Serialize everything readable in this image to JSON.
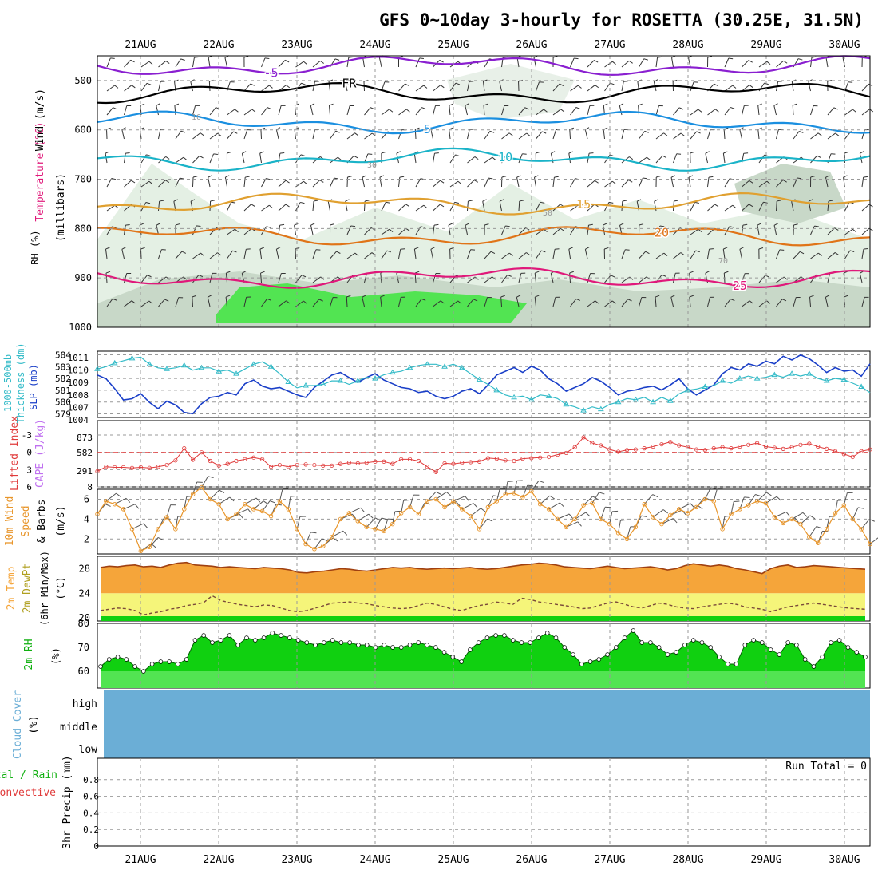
{
  "title": "GFS 0~10day 3-hourly for ROSETTA (30.25E, 31.5N)",
  "dates": [
    "21AUG",
    "22AUG",
    "23AUG",
    "24AUG",
    "25AUG",
    "26AUG",
    "27AUG",
    "28AUG",
    "29AUG",
    "30AUG"
  ],
  "colors": {
    "purple": "#8a1fd0",
    "black": "#000000",
    "blue": "#1a8fe0",
    "cyan": "#1ab3c8",
    "gold": "#e0a030",
    "orange": "#e07418",
    "magenta": "#e0187a",
    "slp": "#1a3fc8",
    "thick": "#33bbc8",
    "cape": "#c070f0",
    "li": "#e03a3a",
    "wind": "#e8952a",
    "temp": "#f5a53a",
    "dew": "#f5f57a",
    "rh": "#10d010",
    "rhlight": "#52e452",
    "cloud": "#6baed6",
    "rhshade": "#d0e6d0"
  },
  "chart_data": [
    {
      "type": "line",
      "title": "Temperature (°C) / Wind (m/s) / RH (%)",
      "ylabel": "(millibars)",
      "left_labels": [
        "Wind (m/s)",
        "Temperature (°C)",
        "RH (%)"
      ],
      "y_ticks": [
        500,
        600,
        700,
        800,
        900,
        1000
      ],
      "ylim": [
        450,
        1000
      ],
      "isotherms": [
        {
          "label": "-5",
          "approx_pressure_mb": 470,
          "color_key": "purple"
        },
        {
          "label": "FR",
          "approx_pressure_mb": 525,
          "color_key": "black"
        },
        {
          "label": "5",
          "approx_pressure_mb": 585,
          "color_key": "blue"
        },
        {
          "label": "10",
          "approx_pressure_mb": 660,
          "color_key": "cyan"
        },
        {
          "label": "15",
          "approx_pressure_mb": 750,
          "color_key": "gold"
        },
        {
          "label": "20",
          "approx_pressure_mb": 815,
          "color_key": "orange"
        },
        {
          "label": "25",
          "approx_pressure_mb": 900,
          "color_key": "magenta"
        }
      ],
      "rh_contour_labels": [
        "10",
        "30",
        "50",
        "70"
      ]
    },
    {
      "type": "line",
      "title": "1000-500mb Thickness (dm) / SLP (mb)",
      "left_label_a": "1000-500mb",
      "left_label_b": "Thickness (dm)",
      "right_label": "SLP (mb)",
      "thickness_ticks": [
        584,
        583,
        582,
        581,
        580,
        579
      ],
      "slp_ticks": [
        1011,
        1010,
        1009,
        1008,
        1007,
        1004
      ],
      "series": [
        {
          "name": "SLP (mb)",
          "color_key": "slp",
          "values": [
            1009.6,
            1009.3,
            1008.5,
            1007.6,
            1007.7,
            1008.1,
            1007.4,
            1006.9,
            1007.5,
            1007.2,
            1006.6,
            1006.5,
            1007.3,
            1007.8,
            1007.9,
            1008.2,
            1008.0,
            1008.9,
            1009.2,
            1008.7,
            1008.5,
            1008.6,
            1008.3,
            1008.0,
            1007.8,
            1008.6,
            1009.1,
            1009.6,
            1009.8,
            1009.4,
            1009.0,
            1009.4,
            1009.7,
            1009.2,
            1008.9,
            1008.6,
            1008.5,
            1008.2,
            1008.3,
            1007.9,
            1007.7,
            1007.9,
            1008.3,
            1008.5,
            1008.1,
            1008.8,
            1009.6,
            1009.9,
            1010.2,
            1009.8,
            1010.3,
            1010.0,
            1009.3,
            1008.9,
            1008.3,
            1008.6,
            1008.9,
            1009.4,
            1009.1,
            1008.6,
            1008.0,
            1008.3,
            1008.4,
            1008.6,
            1008.7,
            1008.4,
            1008.8,
            1009.3,
            1008.5,
            1008.0,
            1008.4,
            1008.8,
            1009.7,
            1010.2,
            1010.0,
            1010.5,
            1010.3,
            1010.7,
            1010.5,
            1011.1,
            1010.8,
            1011.2,
            1010.9,
            1010.4,
            1009.8,
            1010.2,
            1009.9,
            1010.0,
            1009.5,
            1010.5
          ]
        },
        {
          "name": "1000-500mb Thickness (dm)",
          "color_key": "thick",
          "values": [
            582.8,
            583.0,
            583.3,
            583.5,
            583.7,
            583.8,
            583.2,
            582.9,
            582.8,
            582.9,
            583.1,
            582.7,
            582.9,
            582.9,
            582.6,
            582.7,
            582.4,
            582.8,
            583.2,
            583.4,
            583.0,
            582.4,
            581.7,
            581.2,
            581.4,
            581.4,
            581.5,
            581.8,
            581.8,
            581.5,
            581.8,
            582.1,
            582.0,
            582.3,
            582.5,
            582.6,
            582.9,
            583.1,
            583.2,
            583.2,
            583.0,
            583.2,
            582.9,
            582.4,
            581.9,
            581.5,
            581.0,
            580.6,
            580.4,
            580.5,
            580.2,
            580.6,
            580.5,
            580.3,
            579.8,
            579.6,
            579.3,
            579.6,
            579.4,
            579.8,
            580.0,
            580.3,
            580.2,
            580.4,
            580.0,
            580.4,
            580.1,
            580.7,
            581.0,
            581.1,
            581.3,
            581.4,
            581.8,
            581.6,
            582.0,
            582.2,
            582.0,
            582.1,
            582.3,
            582.1,
            582.4,
            582.2,
            582.4,
            582.0,
            581.8,
            582.0,
            581.9,
            581.6,
            581.3,
            580.8
          ]
        }
      ]
    },
    {
      "type": "bar",
      "title": "Lifted Index / CAPE (J/kg)",
      "left_label": "Lifted Index",
      "right_label": "CAPE (J/kg)",
      "li_ticks": [
        "-3",
        "0",
        "3",
        "6"
      ],
      "cape_ticks": [
        "873",
        "582",
        "291",
        "8"
      ],
      "series": [
        {
          "name": "CAPE (J/kg)",
          "color_key": "cape",
          "values": [
            0,
            0,
            0,
            0,
            0,
            0,
            0,
            0,
            0,
            0,
            0,
            0,
            0,
            0,
            0,
            0,
            0,
            0,
            0,
            0,
            0,
            0,
            0,
            0,
            0,
            0,
            0,
            0,
            0,
            0,
            0,
            0,
            0,
            0,
            0,
            0,
            0,
            0,
            0,
            0,
            0,
            0,
            0,
            0,
            0,
            0,
            0,
            0,
            0,
            0,
            0,
            0,
            0,
            0,
            0,
            0,
            0,
            0,
            0,
            0,
            0,
            0,
            0,
            0,
            0,
            0,
            0,
            0,
            0,
            0,
            0,
            0,
            0,
            0,
            0,
            0,
            0,
            0,
            0,
            0,
            0,
            0,
            0,
            0,
            0,
            0,
            0,
            0,
            0,
            0
          ]
        },
        {
          "name": "Lifted Index",
          "color_key": "li",
          "values": [
            3.3,
            2.5,
            2.6,
            2.6,
            2.7,
            2.6,
            2.7,
            2.5,
            2.2,
            1.4,
            -0.7,
            1.3,
            0.0,
            1.5,
            2.3,
            2.0,
            1.5,
            1.2,
            0.9,
            1.2,
            2.5,
            2.2,
            2.5,
            2.2,
            2.1,
            2.2,
            2.3,
            2.3,
            2.0,
            1.8,
            1.9,
            1.8,
            1.6,
            1.6,
            2.0,
            1.2,
            1.2,
            1.5,
            2.5,
            3.4,
            1.9,
            2.0,
            1.8,
            1.7,
            1.6,
            1.0,
            1.1,
            1.4,
            1.5,
            1.1,
            1.0,
            0.9,
            0.8,
            0.4,
            0.1,
            -0.9,
            -2.6,
            -1.6,
            -1.2,
            -0.5,
            -0.1,
            -0.4,
            -0.5,
            -0.7,
            -1.0,
            -1.4,
            -1.8,
            -1.2,
            -0.9,
            -0.5,
            -0.4,
            -0.7,
            -0.9,
            -0.7,
            -1.0,
            -1.3,
            -1.6,
            -1.0,
            -0.8,
            -0.6,
            -0.9,
            -1.3,
            -1.5,
            -1.0,
            -0.6,
            -0.2,
            0.3,
            0.8,
            -0.2,
            -0.5
          ]
        }
      ]
    },
    {
      "type": "line",
      "title": "10m Wind Speed & Barbs",
      "left_label_a": "10m Wind",
      "left_label_b": "Speed",
      "left_label_c": "& Barbs",
      "left_label_d": "(m/s)",
      "y_ticks": [
        2,
        4,
        6
      ],
      "ylim": [
        0.5,
        7.0
      ],
      "series": [
        {
          "name": "10m Wind Speed (m/s)",
          "color_key": "wind",
          "values": [
            4.5,
            5.8,
            5.5,
            5.0,
            3.0,
            0.8,
            1.2,
            3.0,
            4.2,
            3.0,
            5.0,
            6.5,
            7.2,
            6.0,
            5.5,
            4.0,
            4.5,
            5.5,
            5.0,
            4.8,
            4.3,
            5.8,
            5.0,
            3.0,
            1.5,
            1.0,
            1.3,
            2.2,
            4.0,
            4.6,
            3.8,
            3.2,
            3.0,
            2.8,
            3.5,
            4.6,
            5.2,
            4.5,
            5.8,
            6.0,
            5.2,
            5.8,
            5.0,
            4.3,
            3.0,
            5.2,
            5.8,
            6.5,
            6.6,
            6.2,
            6.8,
            5.5,
            5.0,
            4.0,
            3.2,
            4.0,
            5.4,
            5.6,
            4.0,
            3.5,
            2.6,
            2.0,
            3.2,
            5.5,
            4.2,
            3.5,
            4.4,
            5.0,
            4.6,
            5.2,
            6.0,
            5.8,
            3.0,
            4.5,
            5.0,
            5.4,
            5.8,
            5.6,
            4.2,
            3.6,
            4.0,
            3.5,
            2.2,
            1.6,
            3.0,
            4.6,
            5.4,
            4.0,
            3.0,
            1.5
          ]
        }
      ]
    },
    {
      "type": "area",
      "title": "2m Temp / 2m DewPt (6hr Min/Max) (°C)",
      "left_label_a": "2m Temp",
      "left_label_b": "2m DewPt",
      "left_label_c": "(6hr Min/Max)",
      "left_label_d": "(°C)",
      "y_ticks": [
        20,
        24,
        28
      ],
      "ylim": [
        19.5,
        30.0
      ],
      "series": [
        {
          "name": "2m Temp (°C)",
          "color_key": "temp",
          "values": [
            28.2,
            28.4,
            28.3,
            28.5,
            28.6,
            28.3,
            28.4,
            28.2,
            28.6,
            28.9,
            29.0,
            28.6,
            28.5,
            28.4,
            28.2,
            28.3,
            28.2,
            28.1,
            28.0,
            28.2,
            28.1,
            28.0,
            27.8,
            27.4,
            27.3,
            27.5,
            27.6,
            27.8,
            28.0,
            27.9,
            27.7,
            27.6,
            27.8,
            28.0,
            28.2,
            28.1,
            28.2,
            28.0,
            27.9,
            28.0,
            28.1,
            28.0,
            28.1,
            28.2,
            28.0,
            27.9,
            28.0,
            28.2,
            28.4,
            28.6,
            28.7,
            28.9,
            28.8,
            28.6,
            28.3,
            28.2,
            28.1,
            28.0,
            28.2,
            28.4,
            28.2,
            28.0,
            28.1,
            28.2,
            28.3,
            28.1,
            27.8,
            28.0,
            28.5,
            28.8,
            28.6,
            28.4,
            28.6,
            28.4,
            28.0,
            27.8,
            27.5,
            27.2,
            28.0,
            28.4,
            28.6,
            28.2,
            28.3,
            28.5,
            28.4,
            28.3,
            28.2,
            28.1,
            28.0,
            27.9
          ]
        },
        {
          "name": "2m DewPt (°C)",
          "color_key": "dew",
          "values": [
            21.2,
            21.4,
            21.6,
            21.5,
            21.2,
            20.5,
            20.8,
            21.0,
            21.4,
            21.6,
            22.0,
            22.2,
            22.5,
            23.6,
            22.8,
            22.5,
            22.2,
            22.0,
            21.8,
            22.1,
            22.0,
            21.6,
            21.2,
            21.0,
            21.2,
            21.6,
            22.0,
            22.4,
            22.5,
            22.6,
            22.4,
            22.3,
            22.0,
            21.8,
            21.6,
            21.5,
            21.6,
            22.0,
            22.4,
            22.2,
            21.8,
            21.4,
            21.2,
            21.6,
            22.0,
            22.2,
            22.6,
            22.4,
            22.2,
            23.2,
            23.0,
            22.6,
            22.4,
            22.2,
            22.0,
            21.8,
            21.5,
            21.6,
            22.0,
            22.4,
            22.6,
            22.2,
            21.8,
            21.6,
            22.0,
            22.4,
            22.2,
            21.8,
            21.6,
            21.5,
            21.8,
            22.0,
            22.2,
            22.4,
            22.2,
            21.8,
            21.6,
            21.4,
            21.0,
            21.4,
            21.8,
            22.0,
            22.2,
            22.4,
            22.2,
            22.0,
            21.8,
            21.6,
            21.5,
            21.4
          ]
        }
      ]
    },
    {
      "type": "area",
      "title": "2m RH (%)",
      "left_label_a": "2m RH",
      "left_label_b": "(%)",
      "y_ticks": [
        60,
        70,
        80
      ],
      "ylim": [
        53,
        80
      ],
      "series": [
        {
          "name": "2m RH (%)",
          "color_key": "rh",
          "values": [
            62,
            65,
            66,
            65,
            62,
            60,
            63,
            64,
            64,
            63,
            65,
            73,
            75,
            72,
            73,
            75,
            71,
            74,
            73,
            74,
            76,
            75,
            74,
            73,
            72,
            71,
            72,
            73,
            72,
            72,
            71,
            71,
            70,
            71,
            70,
            70,
            71,
            72,
            71,
            70,
            68,
            66,
            64,
            69,
            72,
            74,
            75,
            75,
            73,
            72,
            72,
            74,
            76,
            74,
            70,
            67,
            63,
            64,
            65,
            67,
            70,
            74,
            77,
            72,
            72,
            70,
            67,
            68,
            71,
            73,
            72,
            70,
            66,
            63,
            63,
            71,
            73,
            72,
            69,
            67,
            72,
            71,
            65,
            62,
            66,
            72,
            73,
            70,
            68,
            66
          ]
        }
      ]
    },
    {
      "type": "heatmap",
      "title": "Cloud Cover (%)",
      "left_label_a": "Cloud Cover",
      "left_label_b": "(%)",
      "levels": [
        "high",
        "middle",
        "low"
      ],
      "values": [
        0,
        0,
        0
      ]
    },
    {
      "type": "bar",
      "title": "3hr Precip (mm)",
      "left_label_a": "Total / Rain",
      "left_label_b": "Convective",
      "left_label_c": "3hr Precip (mm)",
      "run_total_label": "Run Total = 0",
      "y_ticks": [
        "0",
        "0.2",
        "0.4",
        "0.6",
        "0.8"
      ],
      "ylim": [
        0,
        1.0
      ],
      "values": [
        0,
        0,
        0,
        0,
        0,
        0,
        0,
        0,
        0,
        0,
        0,
        0,
        0,
        0,
        0,
        0,
        0,
        0,
        0,
        0,
        0,
        0,
        0,
        0,
        0,
        0,
        0,
        0,
        0,
        0,
        0,
        0,
        0,
        0,
        0,
        0,
        0,
        0,
        0,
        0,
        0,
        0,
        0,
        0,
        0,
        0,
        0,
        0,
        0,
        0,
        0,
        0,
        0,
        0,
        0,
        0,
        0,
        0,
        0,
        0,
        0,
        0,
        0,
        0,
        0,
        0,
        0,
        0,
        0,
        0,
        0,
        0,
        0,
        0,
        0,
        0,
        0,
        0,
        0,
        0,
        0,
        0,
        0,
        0,
        0,
        0,
        0,
        0,
        0,
        0
      ]
    }
  ]
}
